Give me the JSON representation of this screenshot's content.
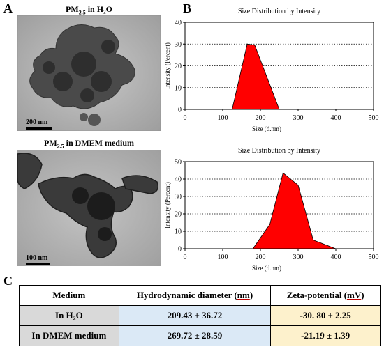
{
  "panels": {
    "a_label": "A",
    "b_label": "B",
    "c_label": "C"
  },
  "tem": {
    "top": {
      "title_main": "PM",
      "title_sub": "2.5",
      "title_rest": " in H₂O",
      "scale_label": "200 nm"
    },
    "bottom": {
      "title_main": "PM",
      "title_sub": "2.5",
      "title_rest": " in DMEM medium",
      "scale_label": "100 nm"
    }
  },
  "chart_data": [
    {
      "type": "area",
      "title": "Size Distribution by Intensity",
      "xlabel": "Size (d.nm)",
      "ylabel": "Intensity (Percent)",
      "xlim": [
        0,
        500
      ],
      "ylim": [
        0,
        40
      ],
      "xticks": [
        0,
        100,
        200,
        300,
        400,
        500
      ],
      "yticks": [
        0,
        10,
        20,
        30,
        40
      ],
      "grid": "horizontal-dotted",
      "color": "#ff0000",
      "x": [
        125,
        165,
        185,
        250
      ],
      "y": [
        0,
        30,
        29.5,
        0
      ]
    },
    {
      "type": "area",
      "title": "Size Distribution by Intensity",
      "xlabel": "Size (d.nm)",
      "ylabel": "Intensity (Percent)",
      "xlim": [
        0,
        500
      ],
      "ylim": [
        0,
        50
      ],
      "xticks": [
        0,
        100,
        200,
        300,
        400,
        500
      ],
      "yticks": [
        0,
        10,
        20,
        30,
        40,
        50
      ],
      "grid": "horizontal-dotted",
      "color": "#ff0000",
      "x": [
        180,
        225,
        260,
        300,
        340,
        400
      ],
      "y": [
        0,
        14,
        43.5,
        36.5,
        5,
        0
      ]
    }
  ],
  "table": {
    "headers": [
      "Medium",
      "Hydrodynamic diameter (nm)",
      "Zeta-potential (mV)"
    ],
    "rows": [
      [
        "In H₂O",
        "209.43 ± 36.72",
        "-30. 80 ± 2.25"
      ],
      [
        "In DMEM medium",
        "269.72 ± 28.59",
        "-21.19 ± 1.39"
      ]
    ]
  }
}
